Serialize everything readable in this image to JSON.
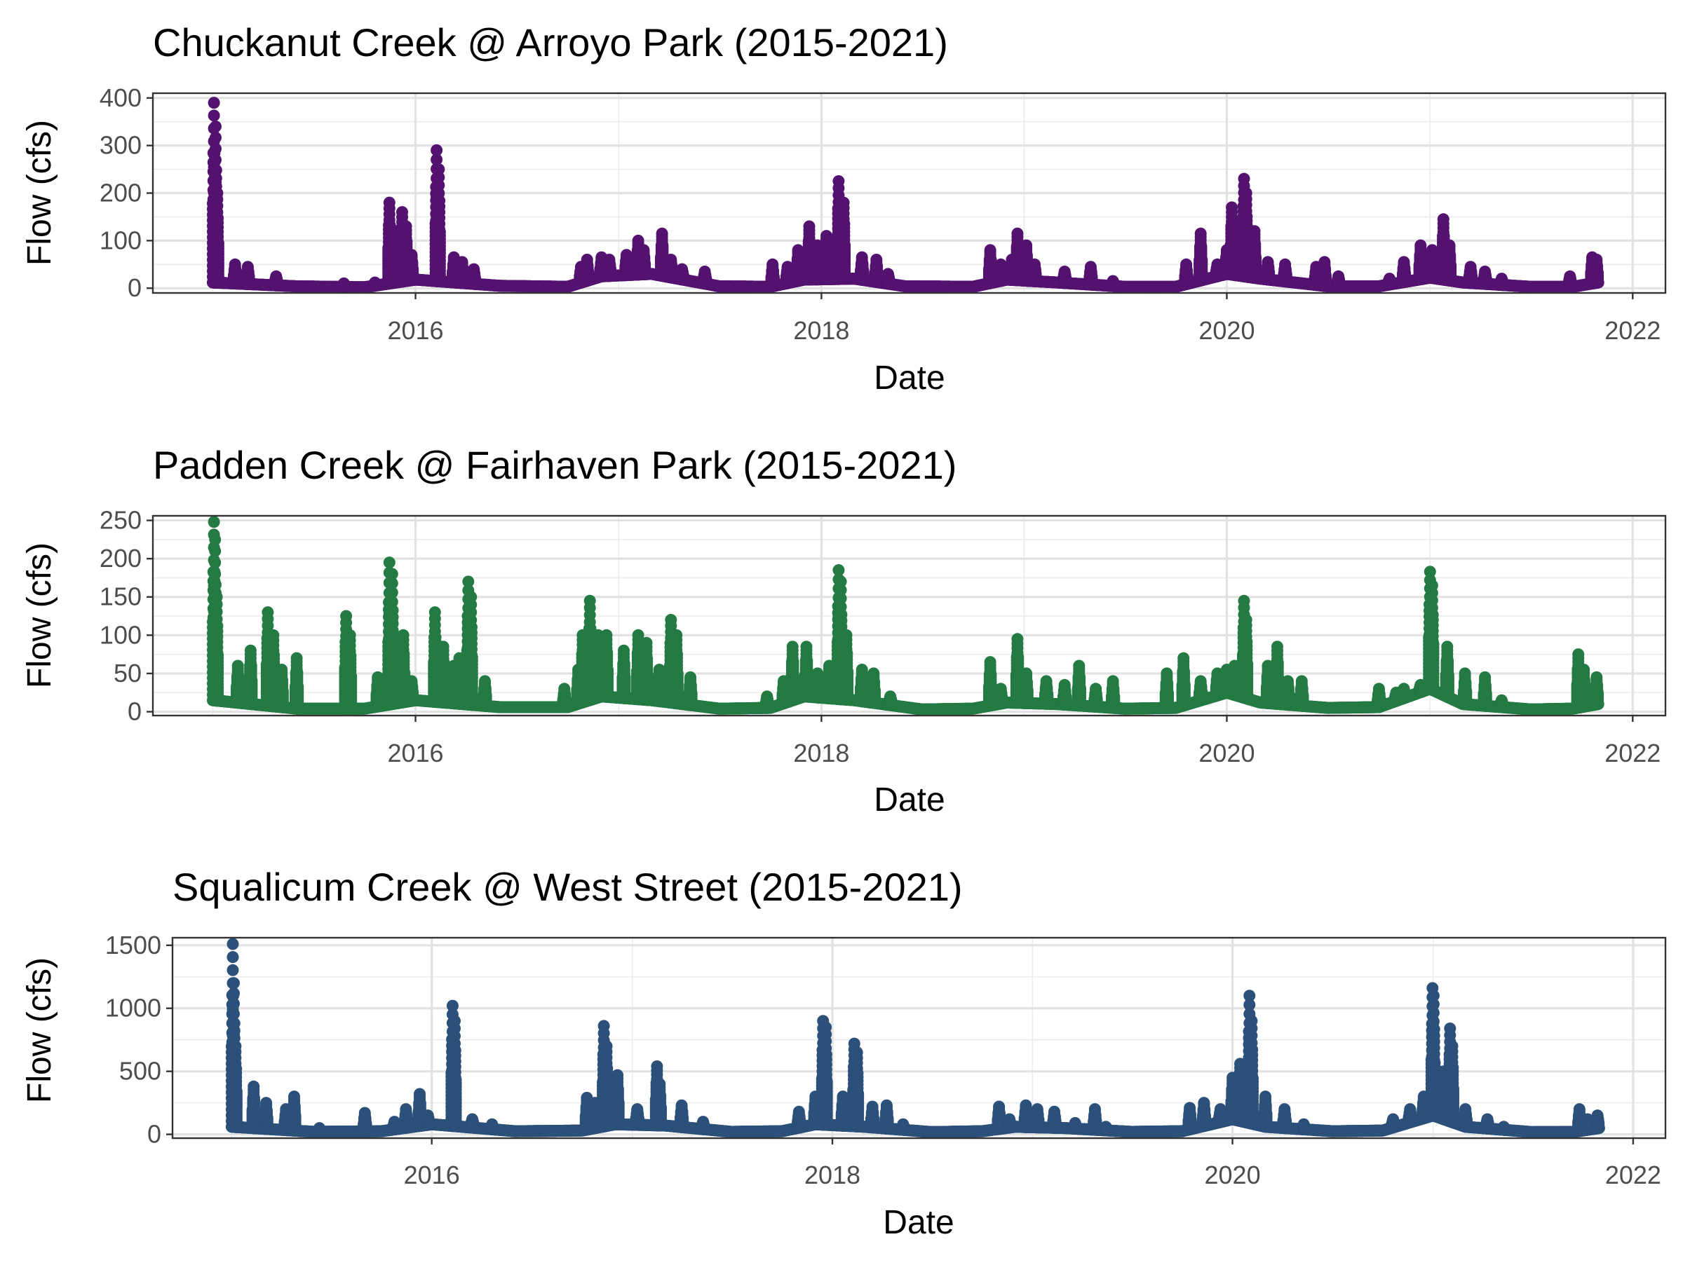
{
  "chart_data": [
    {
      "type": "scatter",
      "title": "Chuckanut Creek @ Arroyo Park (2015-2021)",
      "xlabel": "Date",
      "ylabel": "Flow (cfs)",
      "x_ticks": [
        "2016",
        "2018",
        "2020",
        "2022"
      ],
      "y_ticks": [
        0,
        100,
        200,
        300,
        400
      ],
      "xlim": [
        "2014-09-15",
        "2022-03-01"
      ],
      "ylim": [
        -10,
        410
      ],
      "grid": true,
      "color": "#541270",
      "baseline": [
        [
          "2015-01-01",
          12
        ],
        [
          "2015-06-01",
          4
        ],
        [
          "2015-10-01",
          2
        ],
        [
          "2016-01-01",
          18
        ],
        [
          "2016-06-01",
          5
        ],
        [
          "2016-10-01",
          3
        ],
        [
          "2016-12-01",
          25
        ],
        [
          "2017-03-01",
          30
        ],
        [
          "2017-07-01",
          4
        ],
        [
          "2017-10-01",
          3
        ],
        [
          "2017-12-01",
          18
        ],
        [
          "2018-03-01",
          20
        ],
        [
          "2018-06-01",
          4
        ],
        [
          "2018-10-01",
          3
        ],
        [
          "2018-12-01",
          18
        ],
        [
          "2019-03-01",
          12
        ],
        [
          "2019-07-01",
          3
        ],
        [
          "2019-10-01",
          3
        ],
        [
          "2020-01-01",
          30
        ],
        [
          "2020-03-01",
          20
        ],
        [
          "2020-07-01",
          4
        ],
        [
          "2020-10-01",
          4
        ],
        [
          "2021-01-01",
          22
        ],
        [
          "2021-03-01",
          12
        ],
        [
          "2021-07-01",
          3
        ],
        [
          "2021-09-15",
          3
        ],
        [
          "2021-10-31",
          12
        ]
      ],
      "peaks": [
        [
          "2015-01-03",
          390
        ],
        [
          "2015-01-06",
          340
        ],
        [
          "2015-01-09",
          200
        ],
        [
          "2015-02-10",
          50
        ],
        [
          "2015-03-05",
          45
        ],
        [
          "2015-04-25",
          25
        ],
        [
          "2015-08-25",
          10
        ],
        [
          "2015-10-20",
          12
        ],
        [
          "2015-11-15",
          180
        ],
        [
          "2015-11-28",
          120
        ],
        [
          "2015-12-08",
          160
        ],
        [
          "2015-12-15",
          130
        ],
        [
          "2015-12-25",
          70
        ],
        [
          "2016-02-08",
          290
        ],
        [
          "2016-02-12",
          250
        ],
        [
          "2016-03-10",
          65
        ],
        [
          "2016-03-25",
          55
        ],
        [
          "2016-04-15",
          40
        ],
        [
          "2016-10-25",
          45
        ],
        [
          "2016-11-05",
          60
        ],
        [
          "2016-12-01",
          65
        ],
        [
          "2016-12-15",
          60
        ],
        [
          "2017-01-15",
          70
        ],
        [
          "2017-02-05",
          100
        ],
        [
          "2017-02-15",
          80
        ],
        [
          "2017-03-20",
          115
        ],
        [
          "2017-04-05",
          60
        ],
        [
          "2017-04-25",
          40
        ],
        [
          "2017-06-05",
          35
        ],
        [
          "2017-10-05",
          50
        ],
        [
          "2017-11-01",
          45
        ],
        [
          "2017-11-20",
          80
        ],
        [
          "2017-12-10",
          130
        ],
        [
          "2017-12-25",
          90
        ],
        [
          "2018-01-10",
          110
        ],
        [
          "2018-01-20",
          100
        ],
        [
          "2018-02-01",
          225
        ],
        [
          "2018-02-10",
          180
        ],
        [
          "2018-03-15",
          65
        ],
        [
          "2018-04-10",
          60
        ],
        [
          "2018-05-01",
          30
        ],
        [
          "2018-11-01",
          80
        ],
        [
          "2018-11-20",
          50
        ],
        [
          "2018-12-10",
          60
        ],
        [
          "2018-12-20",
          115
        ],
        [
          "2019-01-05",
          90
        ],
        [
          "2019-01-20",
          50
        ],
        [
          "2019-03-15",
          35
        ],
        [
          "2019-05-01",
          45
        ],
        [
          "2019-06-10",
          15
        ],
        [
          "2019-10-20",
          50
        ],
        [
          "2019-11-15",
          115
        ],
        [
          "2019-12-15",
          50
        ],
        [
          "2020-01-01",
          80
        ],
        [
          "2020-01-10",
          170
        ],
        [
          "2020-01-15",
          140
        ],
        [
          "2020-02-01",
          230
        ],
        [
          "2020-02-05",
          200
        ],
        [
          "2020-02-20",
          120
        ],
        [
          "2020-03-15",
          55
        ],
        [
          "2020-04-15",
          50
        ],
        [
          "2020-06-10",
          45
        ],
        [
          "2020-06-25",
          55
        ],
        [
          "2020-07-20",
          25
        ],
        [
          "2020-10-20",
          20
        ],
        [
          "2020-11-15",
          55
        ],
        [
          "2020-12-15",
          90
        ],
        [
          "2021-01-05",
          80
        ],
        [
          "2021-01-25",
          145
        ],
        [
          "2021-02-05",
          90
        ],
        [
          "2021-03-15",
          45
        ],
        [
          "2021-04-10",
          35
        ],
        [
          "2021-05-10",
          20
        ],
        [
          "2021-09-10",
          25
        ],
        [
          "2021-10-20",
          65
        ],
        [
          "2021-10-28",
          60
        ]
      ]
    },
    {
      "type": "scatter",
      "title": "Padden Creek @ Fairhaven Park (2015-2021)",
      "xlabel": "Date",
      "ylabel": "Flow (cfs)",
      "x_ticks": [
        "2016",
        "2018",
        "2020",
        "2022"
      ],
      "y_ticks": [
        0,
        50,
        100,
        150,
        200,
        250
      ],
      "xlim": [
        "2014-09-15",
        "2022-03-01"
      ],
      "ylim": [
        -5,
        256
      ],
      "grid": true,
      "color": "#237a43",
      "baseline": [
        [
          "2015-01-01",
          15
        ],
        [
          "2015-06-01",
          4
        ],
        [
          "2015-10-01",
          4
        ],
        [
          "2016-01-01",
          15
        ],
        [
          "2016-06-01",
          6
        ],
        [
          "2016-10-01",
          6
        ],
        [
          "2016-12-01",
          20
        ],
        [
          "2017-03-01",
          15
        ],
        [
          "2017-07-01",
          4
        ],
        [
          "2017-10-01",
          5
        ],
        [
          "2017-12-01",
          20
        ],
        [
          "2018-03-01",
          15
        ],
        [
          "2018-07-01",
          3
        ],
        [
          "2018-10-01",
          4
        ],
        [
          "2018-12-01",
          12
        ],
        [
          "2019-03-01",
          10
        ],
        [
          "2019-07-01",
          4
        ],
        [
          "2019-10-01",
          5
        ],
        [
          "2020-01-01",
          25
        ],
        [
          "2020-03-01",
          12
        ],
        [
          "2020-07-01",
          5
        ],
        [
          "2020-10-01",
          6
        ],
        [
          "2021-01-01",
          30
        ],
        [
          "2021-03-01",
          10
        ],
        [
          "2021-07-01",
          3
        ],
        [
          "2021-09-15",
          4
        ],
        [
          "2021-10-31",
          10
        ]
      ],
      "peaks": [
        [
          "2015-01-03",
          248
        ],
        [
          "2015-01-05",
          225
        ],
        [
          "2015-01-08",
          150
        ],
        [
          "2015-02-15",
          60
        ],
        [
          "2015-03-10",
          80
        ],
        [
          "2015-04-10",
          130
        ],
        [
          "2015-04-20",
          100
        ],
        [
          "2015-05-05",
          55
        ],
        [
          "2015-06-01",
          70
        ],
        [
          "2015-08-29",
          125
        ],
        [
          "2015-09-05",
          100
        ],
        [
          "2015-10-25",
          45
        ],
        [
          "2015-11-15",
          195
        ],
        [
          "2015-11-20",
          180
        ],
        [
          "2015-12-10",
          100
        ],
        [
          "2015-12-25",
          40
        ],
        [
          "2016-02-05",
          130
        ],
        [
          "2016-02-20",
          85
        ],
        [
          "2016-03-10",
          60
        ],
        [
          "2016-03-20",
          70
        ],
        [
          "2016-04-05",
          170
        ],
        [
          "2016-04-10",
          150
        ],
        [
          "2016-05-05",
          40
        ],
        [
          "2016-09-25",
          30
        ],
        [
          "2016-10-20",
          55
        ],
        [
          "2016-10-28",
          100
        ],
        [
          "2016-11-10",
          145
        ],
        [
          "2016-11-25",
          100
        ],
        [
          "2016-12-10",
          100
        ],
        [
          "2017-01-10",
          80
        ],
        [
          "2017-02-05",
          100
        ],
        [
          "2017-02-20",
          90
        ],
        [
          "2017-03-15",
          55
        ],
        [
          "2017-04-05",
          120
        ],
        [
          "2017-04-15",
          100
        ],
        [
          "2017-05-10",
          45
        ],
        [
          "2017-09-25",
          20
        ],
        [
          "2017-10-25",
          40
        ],
        [
          "2017-11-10",
          85
        ],
        [
          "2017-12-05",
          85
        ],
        [
          "2017-12-25",
          50
        ],
        [
          "2018-01-15",
          60
        ],
        [
          "2018-02-01",
          185
        ],
        [
          "2018-02-05",
          170
        ],
        [
          "2018-02-15",
          100
        ],
        [
          "2018-03-15",
          55
        ],
        [
          "2018-04-05",
          50
        ],
        [
          "2018-05-05",
          20
        ],
        [
          "2018-11-01",
          65
        ],
        [
          "2018-11-20",
          30
        ],
        [
          "2018-12-20",
          95
        ],
        [
          "2019-01-05",
          50
        ],
        [
          "2019-02-10",
          40
        ],
        [
          "2019-03-15",
          35
        ],
        [
          "2019-04-10",
          60
        ],
        [
          "2019-05-10",
          30
        ],
        [
          "2019-06-10",
          40
        ],
        [
          "2019-09-15",
          50
        ],
        [
          "2019-10-15",
          70
        ],
        [
          "2019-11-15",
          40
        ],
        [
          "2019-12-15",
          50
        ],
        [
          "2020-01-01",
          55
        ],
        [
          "2020-01-15",
          60
        ],
        [
          "2020-02-01",
          145
        ],
        [
          "2020-02-05",
          120
        ],
        [
          "2020-03-15",
          60
        ],
        [
          "2020-04-01",
          85
        ],
        [
          "2020-04-20",
          40
        ],
        [
          "2020-05-15",
          40
        ],
        [
          "2020-10-01",
          30
        ],
        [
          "2020-11-01",
          25
        ],
        [
          "2020-11-15",
          30
        ],
        [
          "2020-12-15",
          35
        ],
        [
          "2021-01-01",
          183
        ],
        [
          "2021-01-05",
          165
        ],
        [
          "2021-02-01",
          85
        ],
        [
          "2021-03-05",
          50
        ],
        [
          "2021-04-10",
          45
        ],
        [
          "2021-05-10",
          15
        ],
        [
          "2021-09-25",
          75
        ],
        [
          "2021-10-05",
          55
        ],
        [
          "2021-10-28",
          45
        ]
      ]
    },
    {
      "type": "scatter",
      "title": "Squalicum Creek @ West Street (2015-2021)",
      "xlabel": "Date",
      "ylabel": "Flow (cfs)",
      "x_ticks": [
        "2016",
        "2018",
        "2020",
        "2022"
      ],
      "y_ticks": [
        0,
        500,
        1000,
        1500
      ],
      "xlim": [
        "2014-09-15",
        "2022-03-01"
      ],
      "ylim": [
        -30,
        1560
      ],
      "grid": true,
      "color": "#2b5079",
      "baseline": [
        [
          "2015-01-01",
          60
        ],
        [
          "2015-06-01",
          20
        ],
        [
          "2015-10-01",
          25
        ],
        [
          "2016-01-01",
          80
        ],
        [
          "2016-06-01",
          25
        ],
        [
          "2016-10-01",
          30
        ],
        [
          "2016-12-01",
          80
        ],
        [
          "2017-03-01",
          70
        ],
        [
          "2017-07-01",
          20
        ],
        [
          "2017-10-01",
          25
        ],
        [
          "2017-12-01",
          80
        ],
        [
          "2018-03-01",
          60
        ],
        [
          "2018-07-01",
          18
        ],
        [
          "2018-10-01",
          25
        ],
        [
          "2018-12-01",
          60
        ],
        [
          "2019-03-01",
          50
        ],
        [
          "2019-07-01",
          20
        ],
        [
          "2019-10-01",
          25
        ],
        [
          "2020-01-01",
          120
        ],
        [
          "2020-03-01",
          60
        ],
        [
          "2020-07-01",
          25
        ],
        [
          "2020-10-01",
          30
        ],
        [
          "2021-01-01",
          150
        ],
        [
          "2021-03-01",
          60
        ],
        [
          "2021-07-01",
          18
        ],
        [
          "2021-09-15",
          20
        ],
        [
          "2021-10-31",
          50
        ]
      ],
      "peaks": [
        [
          "2015-01-03",
          1510
        ],
        [
          "2015-01-05",
          1200
        ],
        [
          "2015-01-08",
          700
        ],
        [
          "2015-02-10",
          380
        ],
        [
          "2015-03-05",
          250
        ],
        [
          "2015-04-10",
          200
        ],
        [
          "2015-04-25",
          300
        ],
        [
          "2015-06-10",
          50
        ],
        [
          "2015-09-01",
          170
        ],
        [
          "2015-10-25",
          100
        ],
        [
          "2015-11-15",
          200
        ],
        [
          "2015-12-10",
          320
        ],
        [
          "2015-12-25",
          150
        ],
        [
          "2016-02-08",
          1020
        ],
        [
          "2016-02-12",
          900
        ],
        [
          "2016-03-15",
          120
        ],
        [
          "2016-04-20",
          80
        ],
        [
          "2016-10-10",
          290
        ],
        [
          "2016-10-25",
          250
        ],
        [
          "2016-11-10",
          860
        ],
        [
          "2016-11-15",
          700
        ],
        [
          "2016-12-05",
          470
        ],
        [
          "2017-01-10",
          200
        ],
        [
          "2017-02-15",
          540
        ],
        [
          "2017-02-20",
          400
        ],
        [
          "2017-04-01",
          230
        ],
        [
          "2017-05-10",
          100
        ],
        [
          "2017-11-01",
          180
        ],
        [
          "2017-12-01",
          300
        ],
        [
          "2017-12-15",
          900
        ],
        [
          "2017-12-20",
          850
        ],
        [
          "2018-01-20",
          300
        ],
        [
          "2018-02-10",
          720
        ],
        [
          "2018-02-15",
          650
        ],
        [
          "2018-03-15",
          220
        ],
        [
          "2018-04-10",
          230
        ],
        [
          "2018-05-10",
          80
        ],
        [
          "2018-11-01",
          220
        ],
        [
          "2018-11-20",
          120
        ],
        [
          "2018-12-20",
          230
        ],
        [
          "2019-01-10",
          200
        ],
        [
          "2019-02-10",
          180
        ],
        [
          "2019-03-20",
          90
        ],
        [
          "2019-04-25",
          200
        ],
        [
          "2019-05-15",
          60
        ],
        [
          "2019-10-15",
          210
        ],
        [
          "2019-11-10",
          250
        ],
        [
          "2019-12-10",
          200
        ],
        [
          "2020-01-01",
          450
        ],
        [
          "2020-01-15",
          560
        ],
        [
          "2020-02-01",
          1100
        ],
        [
          "2020-02-05",
          900
        ],
        [
          "2020-03-01",
          300
        ],
        [
          "2020-04-05",
          200
        ],
        [
          "2020-05-10",
          80
        ],
        [
          "2020-10-20",
          120
        ],
        [
          "2020-11-20",
          200
        ],
        [
          "2020-12-15",
          300
        ],
        [
          "2020-12-31",
          1160
        ],
        [
          "2021-01-02",
          1100
        ],
        [
          "2021-01-20",
          500
        ],
        [
          "2021-02-01",
          840
        ],
        [
          "2021-02-05",
          700
        ],
        [
          "2021-03-01",
          200
        ],
        [
          "2021-04-10",
          120
        ],
        [
          "2021-05-10",
          60
        ],
        [
          "2021-09-25",
          200
        ],
        [
          "2021-10-10",
          120
        ],
        [
          "2021-10-28",
          150
        ]
      ]
    }
  ]
}
